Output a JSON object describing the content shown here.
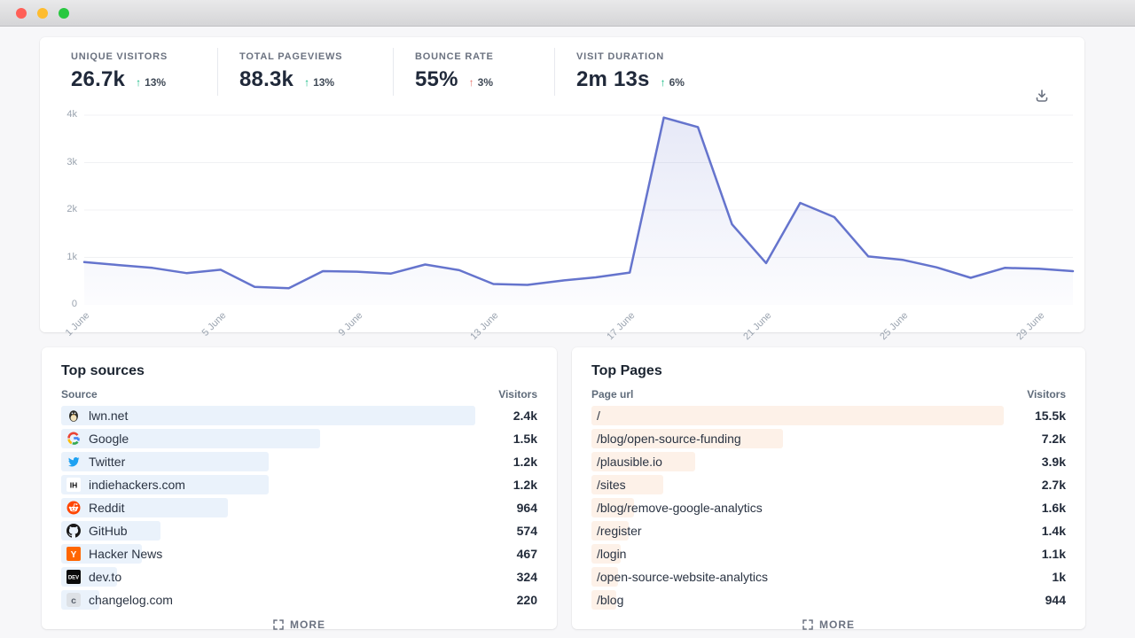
{
  "window": {
    "lights": [
      {
        "name": "close",
        "color": "#ff5f57"
      },
      {
        "name": "minimize",
        "color": "#febc2e"
      },
      {
        "name": "zoom",
        "color": "#28c840"
      }
    ]
  },
  "colors": {
    "up": "#10b981",
    "down_bad": "#e8756b",
    "line": "#6574cd",
    "source_bar": "#eaf2fb",
    "page_bar": "#fdf1e8"
  },
  "stats": [
    {
      "label": "UNIQUE VISITORS",
      "value": "26.7k",
      "arrow": "↑",
      "change": "13%",
      "tone": "good"
    },
    {
      "label": "TOTAL PAGEVIEWS",
      "value": "88.3k",
      "arrow": "↑",
      "change": "13%",
      "tone": "good"
    },
    {
      "label": "BOUNCE RATE",
      "value": "55%",
      "arrow": "↑",
      "change": "3%",
      "tone": "bad"
    },
    {
      "label": "VISIT DURATION",
      "value": "2m 13s",
      "arrow": "↑",
      "change": "6%",
      "tone": "good"
    }
  ],
  "chart_data": {
    "type": "line",
    "month": "June",
    "days": [
      1,
      2,
      3,
      4,
      5,
      6,
      7,
      8,
      9,
      10,
      11,
      12,
      13,
      14,
      15,
      16,
      17,
      18,
      19,
      20,
      21,
      22,
      23,
      24,
      25,
      26,
      27,
      28,
      29,
      30
    ],
    "values": [
      900,
      840,
      780,
      670,
      740,
      380,
      350,
      710,
      700,
      660,
      850,
      730,
      440,
      420,
      510,
      580,
      680,
      3950,
      3750,
      1700,
      880,
      2150,
      1850,
      1020,
      950,
      790,
      570,
      780,
      760,
      710
    ],
    "series_name": "Visitors",
    "ylim": [
      0,
      4000
    ],
    "yticks": [
      {
        "label": "0",
        "v": 0
      },
      {
        "label": "1k",
        "v": 1000
      },
      {
        "label": "2k",
        "v": 2000
      },
      {
        "label": "3k",
        "v": 3000
      },
      {
        "label": "4k",
        "v": 4000
      }
    ],
    "xticks": [
      {
        "label": "1 June",
        "day": 1
      },
      {
        "label": "5 June",
        "day": 5
      },
      {
        "label": "9 June",
        "day": 9
      },
      {
        "label": "13 June",
        "day": 13
      },
      {
        "label": "17 June",
        "day": 17
      },
      {
        "label": "21 June",
        "day": 21
      },
      {
        "label": "25 June",
        "day": 25
      },
      {
        "label": "29 June",
        "day": 29
      }
    ],
    "grid": true,
    "legend": "none"
  },
  "top_sources": {
    "title": "Top sources",
    "col_left": "Source",
    "col_right": "Visitors",
    "more_label": "MORE",
    "rows": [
      {
        "label": "lwn.net",
        "visitors": "2.4k",
        "value": 2400,
        "icon": "lwn-favicon"
      },
      {
        "label": "Google",
        "visitors": "1.5k",
        "value": 1500,
        "icon": "google-favicon"
      },
      {
        "label": "Twitter",
        "visitors": "1.2k",
        "value": 1200,
        "icon": "twitter-favicon"
      },
      {
        "label": "indiehackers.com",
        "visitors": "1.2k",
        "value": 1200,
        "icon": "indiehackers-favicon"
      },
      {
        "label": "Reddit",
        "visitors": "964",
        "value": 964,
        "icon": "reddit-favicon"
      },
      {
        "label": "GitHub",
        "visitors": "574",
        "value": 574,
        "icon": "github-favicon"
      },
      {
        "label": "Hacker News",
        "visitors": "467",
        "value": 467,
        "icon": "hackernews-favicon"
      },
      {
        "label": "dev.to",
        "visitors": "324",
        "value": 324,
        "icon": "devto-favicon"
      },
      {
        "label": "changelog.com",
        "visitors": "220",
        "value": 220,
        "icon": "changelog-favicon"
      }
    ]
  },
  "top_pages": {
    "title": "Top Pages",
    "col_left": "Page url",
    "col_right": "Visitors",
    "more_label": "MORE",
    "rows": [
      {
        "label": "/",
        "visitors": "15.5k",
        "value": 15500
      },
      {
        "label": "/blog/open-source-funding",
        "visitors": "7.2k",
        "value": 7200
      },
      {
        "label": "/plausible.io",
        "visitors": "3.9k",
        "value": 3900
      },
      {
        "label": "/sites",
        "visitors": "2.7k",
        "value": 2700
      },
      {
        "label": "/blog/remove-google-analytics",
        "visitors": "1.6k",
        "value": 1600
      },
      {
        "label": "/register",
        "visitors": "1.4k",
        "value": 1400
      },
      {
        "label": "/login",
        "visitors": "1.1k",
        "value": 1100
      },
      {
        "label": "/open-source-website-analytics",
        "visitors": "1k",
        "value": 1000
      },
      {
        "label": "/blog",
        "visitors": "944",
        "value": 944
      }
    ]
  }
}
